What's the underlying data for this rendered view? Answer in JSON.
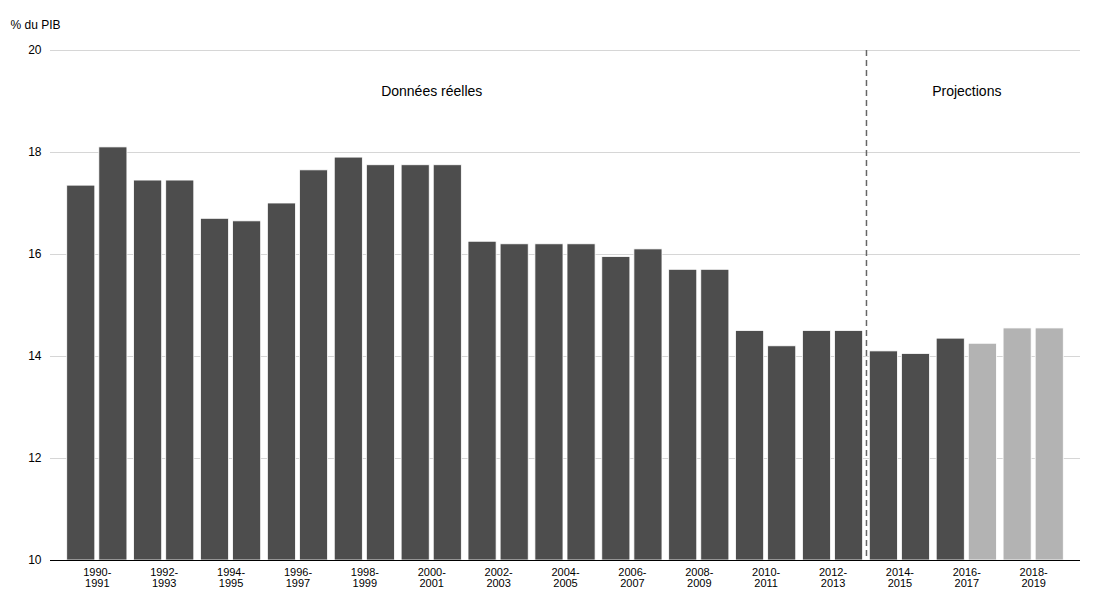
{
  "chart_data": {
    "type": "bar",
    "categories": [
      "1990-\n1991",
      "1992-\n1993",
      "1994-\n1995",
      "1996-\n1997",
      "1998-\n1999",
      "2000-\n2001",
      "2002-\n2003",
      "2004-\n2005",
      "2006-\n2007",
      "2008-\n2009",
      "2010-\n2011",
      "2012-\n2013",
      "2014-\n2015",
      "2016-\n2017",
      "2018-\n2019"
    ],
    "series": [
      {
        "values": [
          17.35,
          17.45,
          16.7,
          17.0,
          17.9,
          17.75,
          16.25,
          16.2,
          15.95,
          15.7,
          14.5,
          14.5,
          14.1,
          14.35,
          14.55
        ],
        "colors": [
          "#4d4d4d",
          "#4d4d4d",
          "#4d4d4d",
          "#4d4d4d",
          "#4d4d4d",
          "#4d4d4d",
          "#4d4d4d",
          "#4d4d4d",
          "#4d4d4d",
          "#4d4d4d",
          "#4d4d4d",
          "#4d4d4d",
          "#4d4d4d",
          "#4d4d4d",
          "#b3b3b3"
        ]
      },
      {
        "values": [
          18.1,
          17.45,
          16.65,
          17.65,
          17.75,
          17.75,
          16.2,
          16.2,
          16.1,
          15.7,
          14.2,
          14.5,
          14.05,
          14.25,
          14.55
        ],
        "colors": [
          "#4d4d4d",
          "#4d4d4d",
          "#4d4d4d",
          "#4d4d4d",
          "#4d4d4d",
          "#4d4d4d",
          "#4d4d4d",
          "#4d4d4d",
          "#4d4d4d",
          "#4d4d4d",
          "#4d4d4d",
          "#4d4d4d",
          "#4d4d4d",
          "#b3b3b3",
          "#b3b3b3"
        ]
      }
    ],
    "ylabel": "% du PIB",
    "annotations": [
      "Données réelles",
      "Projections"
    ],
    "ylim": [
      10,
      20
    ],
    "yticks": [
      10,
      12,
      14,
      16,
      18,
      20
    ],
    "grid": true
  }
}
